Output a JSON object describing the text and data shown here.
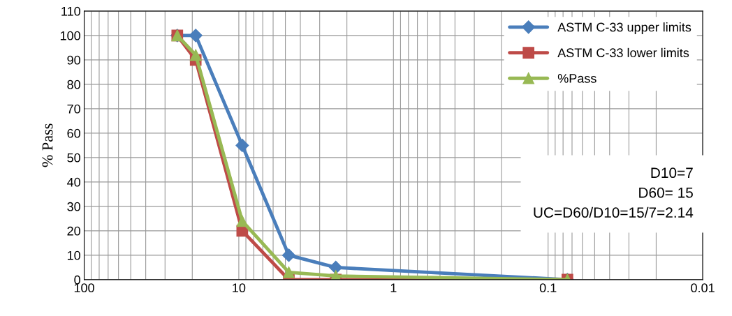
{
  "chart_data": {
    "type": "line",
    "ylabel": "% Pass",
    "log": "x",
    "xlim": [
      100,
      0.01
    ],
    "xticks": [
      {
        "value": 100,
        "label": "100"
      },
      {
        "value": 10,
        "label": "10"
      },
      {
        "value": 1,
        "label": "1"
      },
      {
        "value": 0.1,
        "label": "0.1"
      },
      {
        "value": 0.01,
        "label": "0.01"
      }
    ],
    "ylim": [
      0,
      110
    ],
    "yticks": [
      0,
      10,
      20,
      30,
      40,
      50,
      60,
      70,
      80,
      90,
      100,
      110
    ],
    "x": [
      25,
      19,
      9.5,
      4.75,
      2.36,
      0.075
    ],
    "series": [
      {
        "name": "ASTM C-33 upper limits",
        "color": "#4a7ebb",
        "marker": "diamond",
        "values": [
          100,
          100,
          55,
          10,
          5,
          0
        ]
      },
      {
        "name": "ASTM C-33 lower limits",
        "color": "#be4b48",
        "marker": "square",
        "values": [
          100,
          90,
          20,
          0,
          0,
          0
        ]
      },
      {
        "name": "%Pass",
        "color": "#98b954",
        "marker": "triangle",
        "values": [
          100,
          92,
          24,
          3,
          1.5,
          0
        ]
      }
    ],
    "annotations": [
      "D10=7",
      "D60= 15",
      "UC=D60/D10=15/7=2.14"
    ],
    "grid": true,
    "legend": "top right",
    "line_style": "solid"
  }
}
